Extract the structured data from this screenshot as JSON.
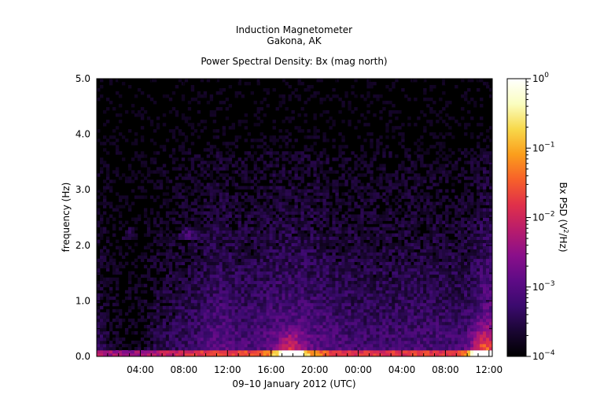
{
  "chart_data": {
    "type": "heatmap",
    "title_lines": [
      "Induction Magnetometer",
      "Gakona, AK"
    ],
    "subtitle": "Power Spectral Density: Bx (mag north)",
    "xlabel": "09–10 January 2012 (UTC)",
    "ylabel": "frequency (Hz)",
    "x_ticks": [
      "04:00",
      "08:00",
      "12:00",
      "16:00",
      "20:00",
      "00:00",
      "04:00",
      "08:00",
      "12:00"
    ],
    "x_tick_hours": [
      4,
      8,
      12,
      16,
      20,
      24,
      28,
      32,
      36
    ],
    "xlim_hours": [
      0,
      36.3
    ],
    "y_ticks": [
      "0.0",
      "1.0",
      "2.0",
      "3.0",
      "4.0",
      "5.0"
    ],
    "y_tick_values": [
      0,
      1,
      2,
      3,
      4,
      5
    ],
    "ylim": [
      0,
      5
    ],
    "colorbar": {
      "label_prefix": "Bx PSD (",
      "label_unit_base": "V",
      "label_unit_exp": "2",
      "label_suffix": "/Hz)",
      "scale": "log",
      "range": [
        0.0001,
        1
      ],
      "ticks": [
        {
          "base": "10",
          "exp": "0",
          "value": 1
        },
        {
          "base": "10",
          "exp": "−1",
          "value": 0.1
        },
        {
          "base": "10",
          "exp": "−2",
          "value": 0.01
        },
        {
          "base": "10",
          "exp": "−3",
          "value": 0.001
        },
        {
          "base": "10",
          "exp": "−4",
          "value": 0.0001
        }
      ],
      "colormap": [
        "#000000",
        "#1a0633",
        "#3b0a6e",
        "#5e0b86",
        "#8a0f8a",
        "#b81c6c",
        "#e0304a",
        "#f7602a",
        "#fb9e1c",
        "#f8d84a",
        "#fafec0",
        "#ffffff"
      ]
    }
  }
}
